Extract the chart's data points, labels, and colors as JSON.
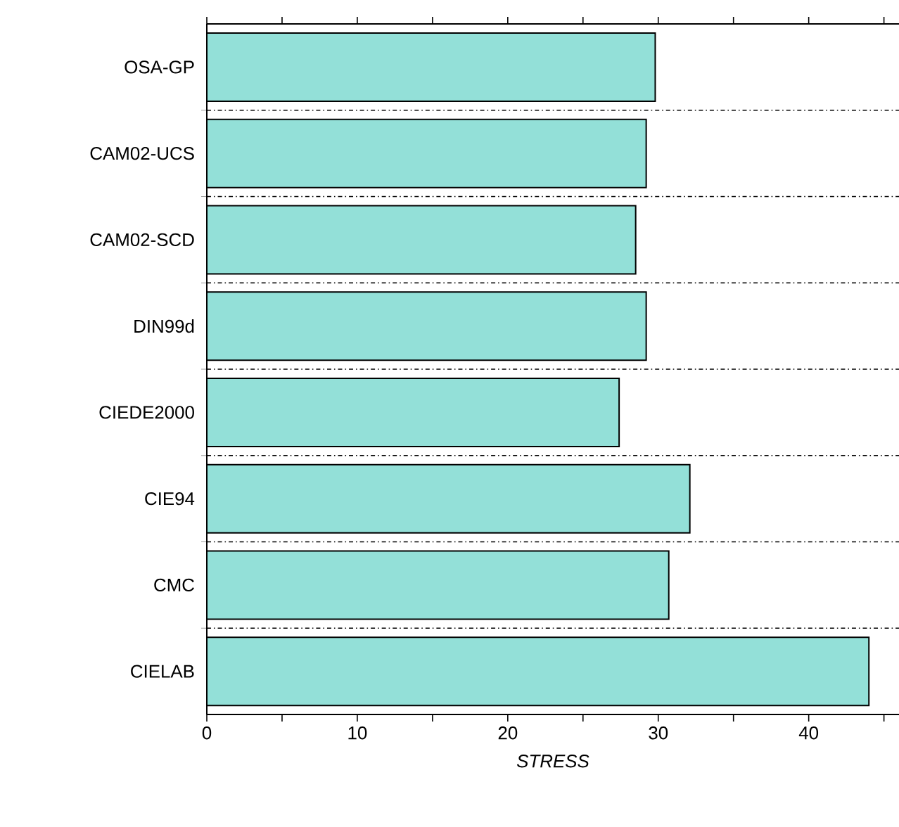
{
  "chart_data": {
    "type": "bar",
    "orientation": "horizontal",
    "xlabel": "STRESS",
    "categories": [
      "OSA-GP",
      "CAM02-UCS",
      "CAM02-SCD",
      "DIN99d",
      "CIEDE2000",
      "CIE94",
      "CMC",
      "CIELAB"
    ],
    "values": [
      29.8,
      29.2,
      28.5,
      29.2,
      27.4,
      32.1,
      30.7,
      44.0
    ],
    "color": "#93e0d8",
    "xlim": [
      0,
      46
    ],
    "xticks": [
      0,
      {
        "value": 5,
        "label": null
      },
      10,
      {
        "value": 15,
        "label": null
      },
      20,
      {
        "value": 25,
        "label": null
      },
      30,
      {
        "value": 35,
        "label": null
      },
      40,
      {
        "value": 45,
        "label": null
      }
    ],
    "grid": "y",
    "line_style": "dashdot"
  }
}
